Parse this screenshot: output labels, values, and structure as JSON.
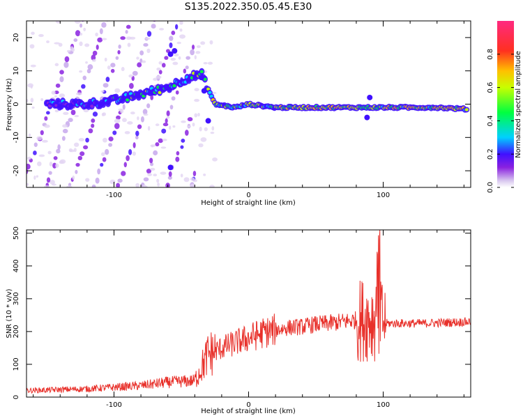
{
  "title": "S135.2022.350.05.45.E30",
  "chart_data": [
    {
      "type": "heatmap",
      "xlabel": "Height of straight line (km)",
      "ylabel": "Frequency (Hz)",
      "xlim": [
        -165,
        165
      ],
      "ylim": [
        -25,
        25
      ],
      "x_ticks": [
        -100,
        0,
        100
      ],
      "y_ticks": [
        -20,
        -10,
        0,
        10,
        20
      ],
      "colorbar": {
        "label": "Normalized spectral amplitude",
        "range": [
          0,
          1
        ],
        "ticks": [
          0.0,
          0.2,
          0.4,
          0.6,
          0.8
        ]
      },
      "features": [
        {
          "name": "main-band",
          "x": [
            -140,
            -120,
            -100,
            -80,
            -60,
            -45,
            -35,
            -25,
            -10,
            0,
            20,
            50,
            80,
            95,
            120,
            140,
            162
          ],
          "y": [
            0,
            0,
            1,
            3,
            5,
            8,
            9,
            0,
            -1,
            0,
            -1,
            -1,
            -1,
            -1,
            -1,
            -1,
            -1.5
          ]
        }
      ]
    },
    {
      "type": "line",
      "xlabel": "Height of straight line (km)",
      "ylabel": "SNR (10 * v/v)",
      "xlim": [
        -165,
        165
      ],
      "ylim": [
        0,
        510
      ],
      "x_ticks": [
        -100,
        0,
        100
      ],
      "y_ticks": [
        0,
        100,
        200,
        300,
        400,
        500
      ],
      "color": "#e8302a",
      "envelope": {
        "x": [
          -165,
          -120,
          -80,
          -60,
          -40,
          -30,
          -20,
          -10,
          0,
          10,
          20,
          30,
          40,
          50,
          60,
          70,
          80,
          90,
          95,
          100,
          102,
          110,
          130,
          150,
          165
        ],
        "y": [
          20,
          25,
          35,
          45,
          50,
          130,
          150,
          165,
          180,
          195,
          205,
          212,
          215,
          222,
          225,
          230,
          235,
          240,
          240,
          235,
          225,
          225,
          225,
          228,
          230
        ]
      }
    }
  ]
}
